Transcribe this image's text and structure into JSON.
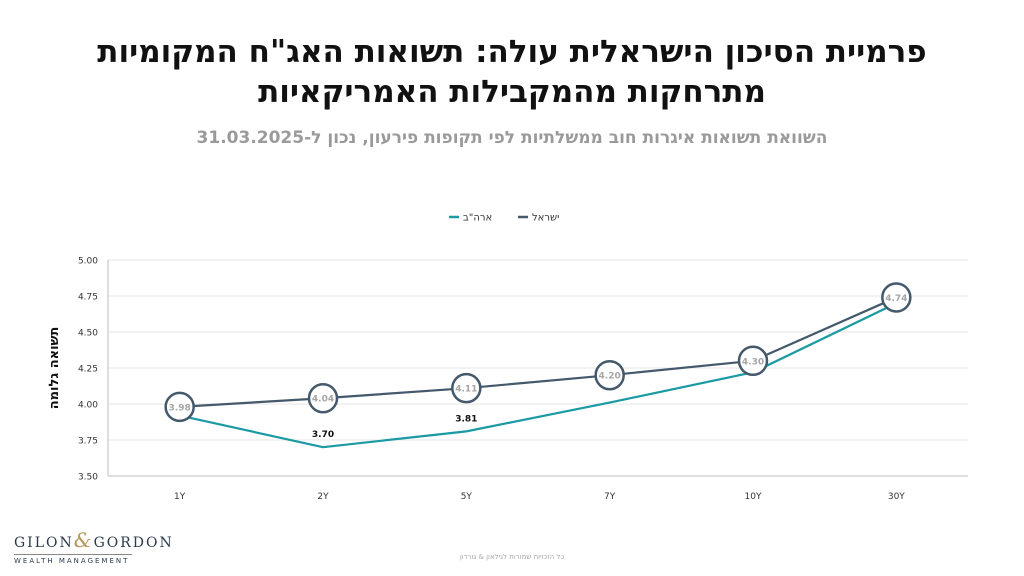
{
  "page": {
    "title_line1": "פרמיית הסיכון הישראלית עולה: תשואות האג\"ח המקומיות",
    "title_line2": "מתרחקות מהמקבילות האמריקאיות",
    "subtitle": "השוואת תשואות איגרות חוב ממשלתיות לפי תקופות פירעון, נכון ל-31.03.2025",
    "footer": "כל הזכויות שמורות לגילאון & גורדון",
    "logo_main_left": "GILON",
    "logo_amp": "&",
    "logo_main_right": "GORDON",
    "logo_sub": "WEALTH MANAGEMENT"
  },
  "chart_data": {
    "type": "line",
    "categories": [
      "1Y",
      "2Y",
      "5Y",
      "7Y",
      "10Y",
      "30Y"
    ],
    "series": [
      {
        "name": "ישראל",
        "color": "#44596b",
        "values": [
          3.98,
          4.04,
          4.11,
          4.2,
          4.3,
          4.74
        ]
      },
      {
        "name": "ארה\"ב",
        "color": "#1a9aa3",
        "values": [
          3.92,
          3.7,
          3.81,
          4.01,
          4.22,
          4.7
        ]
      }
    ],
    "data_labels": [
      {
        "series": 0,
        "index": 0,
        "text": "3.98"
      },
      {
        "series": 0,
        "index": 1,
        "text": "4.04"
      },
      {
        "series": 0,
        "index": 2,
        "text": "4.11"
      },
      {
        "series": 0,
        "index": 3,
        "text": "4.20"
      },
      {
        "series": 0,
        "index": 4,
        "text": "4.30"
      },
      {
        "series": 0,
        "index": 5,
        "text": "4.74"
      },
      {
        "series": 1,
        "index": 1,
        "text": "3.70"
      },
      {
        "series": 1,
        "index": 2,
        "text": "3.81"
      }
    ],
    "ylabel": "תשואה גלומה",
    "ylim": [
      3.5,
      5.0
    ],
    "yticks": [
      "3.50",
      "3.75",
      "4.00",
      "4.25",
      "4.50",
      "4.75",
      "5.00"
    ],
    "grid": true,
    "legend": "top-center"
  }
}
